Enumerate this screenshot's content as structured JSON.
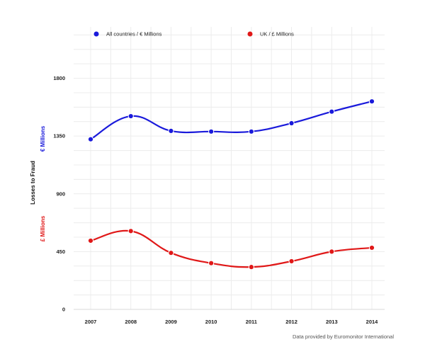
{
  "chart_data": {
    "type": "line",
    "title": "",
    "xlabel": "",
    "ylabel": "Losses to Fraud",
    "ylabel_series_left": "€ Millions",
    "ylabel_series_right": "£ Millions",
    "categories": [
      "2007",
      "2008",
      "2009",
      "2010",
      "2011",
      "2012",
      "2013",
      "2014"
    ],
    "series": [
      {
        "name": "All countries / € Millions",
        "color": "#1a1adb",
        "values": [
          1325,
          1505,
          1390,
          1385,
          1385,
          1450,
          1540,
          1620
        ]
      },
      {
        "name": "UK / £ Millions",
        "color": "#e01818",
        "values": [
          535,
          610,
          440,
          360,
          330,
          375,
          450,
          480
        ]
      }
    ],
    "yticks": [
      0,
      450,
      900,
      1350,
      1800
    ],
    "ylim": [
      0,
      2200
    ],
    "grid": true,
    "legend": "top",
    "source": "Data provided by Euromonitor International"
  }
}
